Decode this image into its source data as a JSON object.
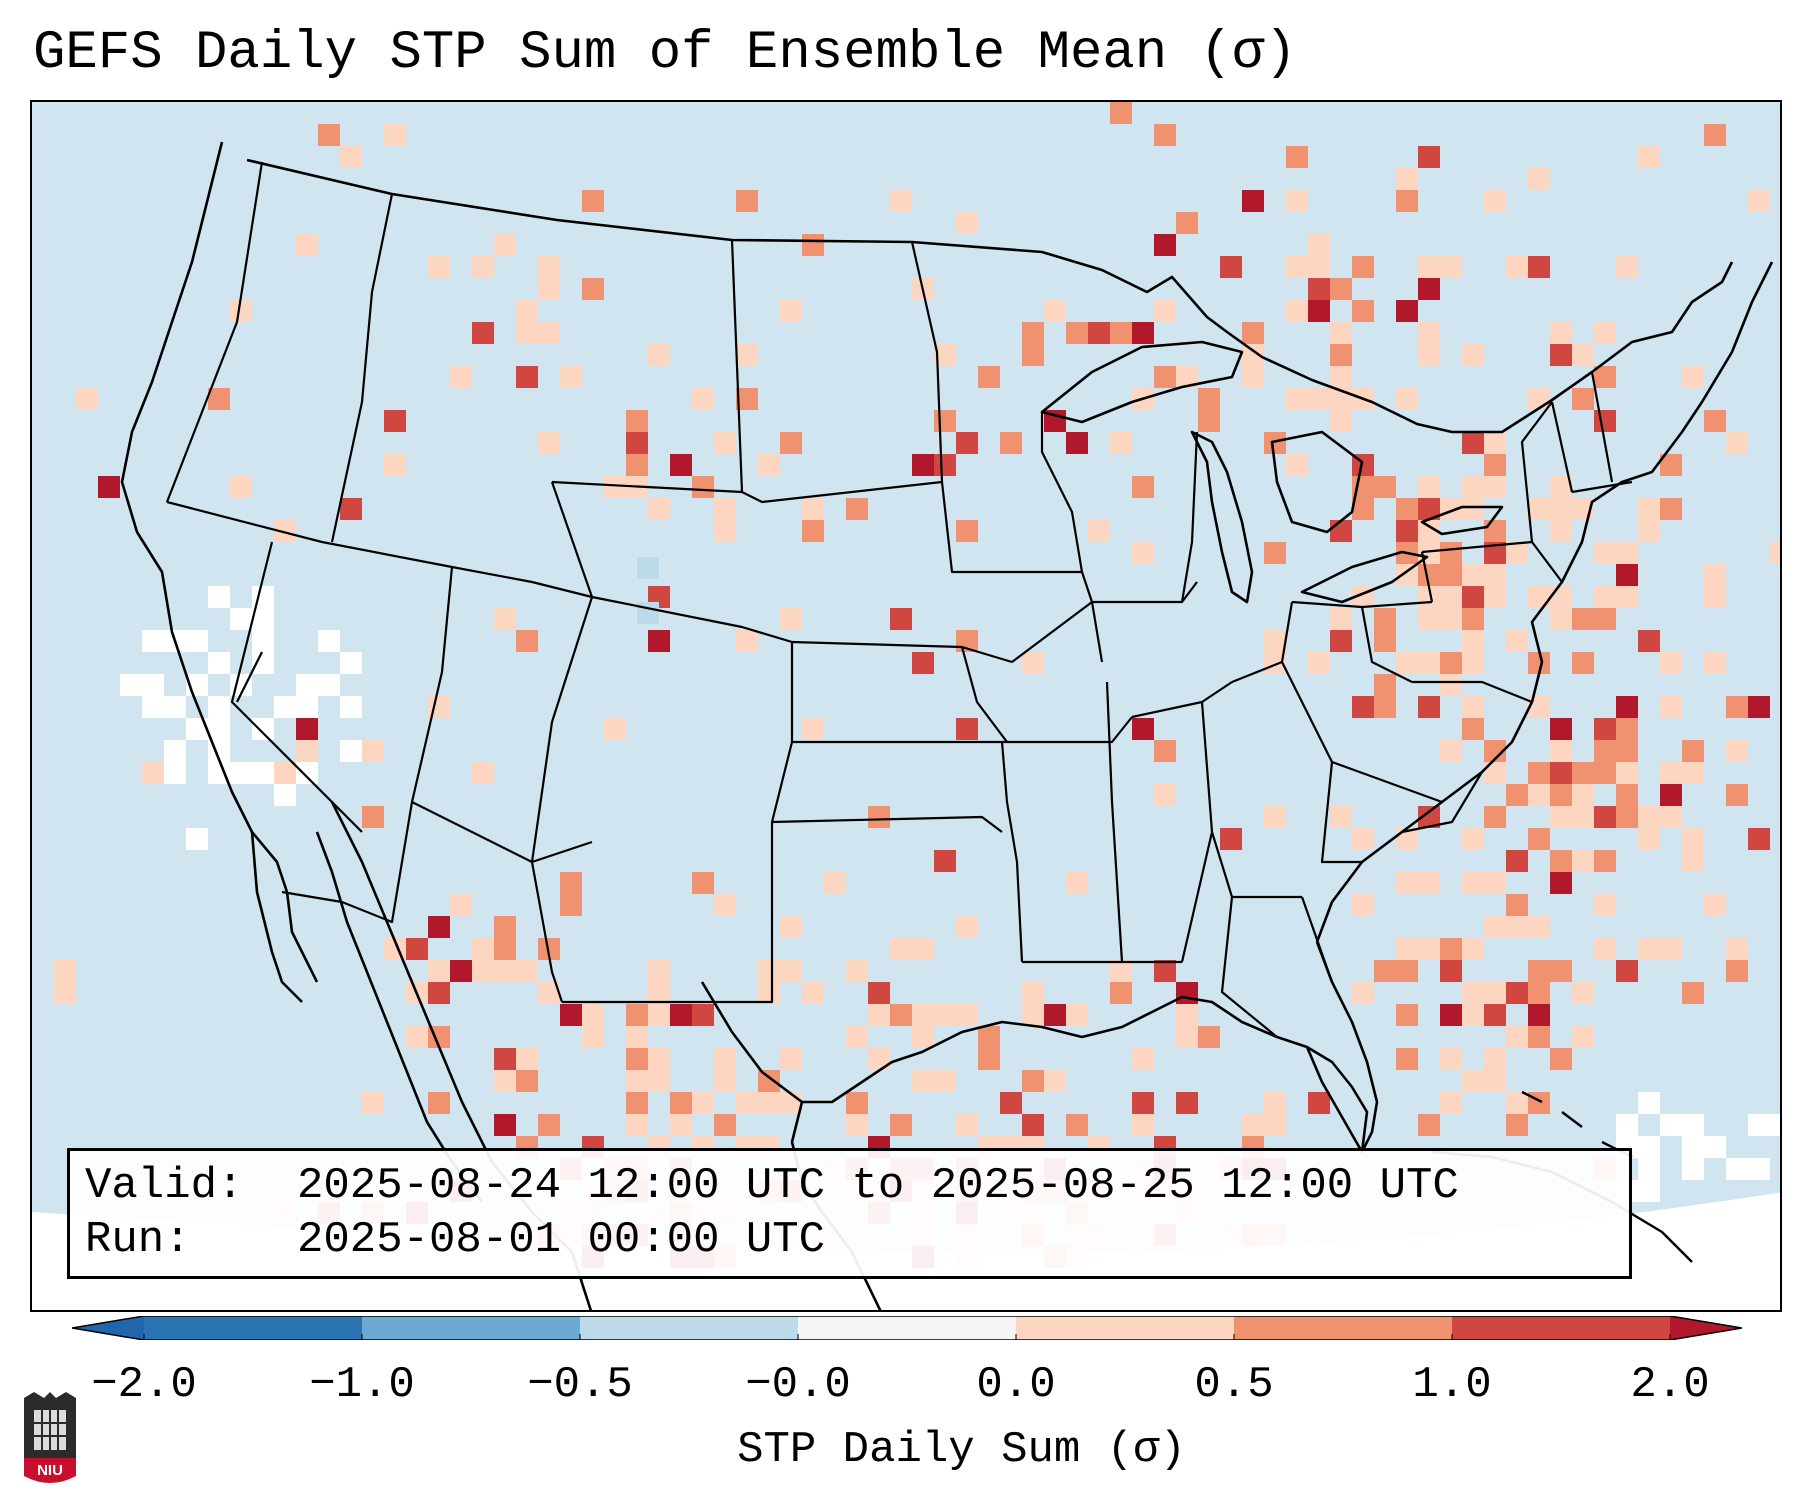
{
  "title": "GEFS Daily STP Sum of Ensemble Mean (σ)",
  "info": {
    "valid_label": "Valid:",
    "valid_value": "2025-08-24 12:00 UTC to 2025-08-25 12:00 UTC",
    "run_label": "Run:",
    "run_value": "2025-08-01 00:00 UTC"
  },
  "colorbar": {
    "title": "STP Daily Sum (σ)",
    "tick_labels": [
      "−2.0",
      "−1.0",
      "−0.5",
      "−0.0",
      "0.0",
      "0.5",
      "1.0",
      "2.0"
    ],
    "colors": [
      "#2b74b2",
      "#6aaad3",
      "#bcdaea",
      "#f5f5f5",
      "#fdd6c2",
      "#f0926f",
      "#cf4740"
    ],
    "extend_low_color": "#2166ac",
    "extend_high_color": "#b2182b"
  },
  "map": {
    "background_color": "#d1e5f0",
    "outside_color": "#ffffff",
    "boundary_color": "#000000"
  },
  "logo": {
    "text": "NIU",
    "semantic": "niu-logo-icon"
  }
}
